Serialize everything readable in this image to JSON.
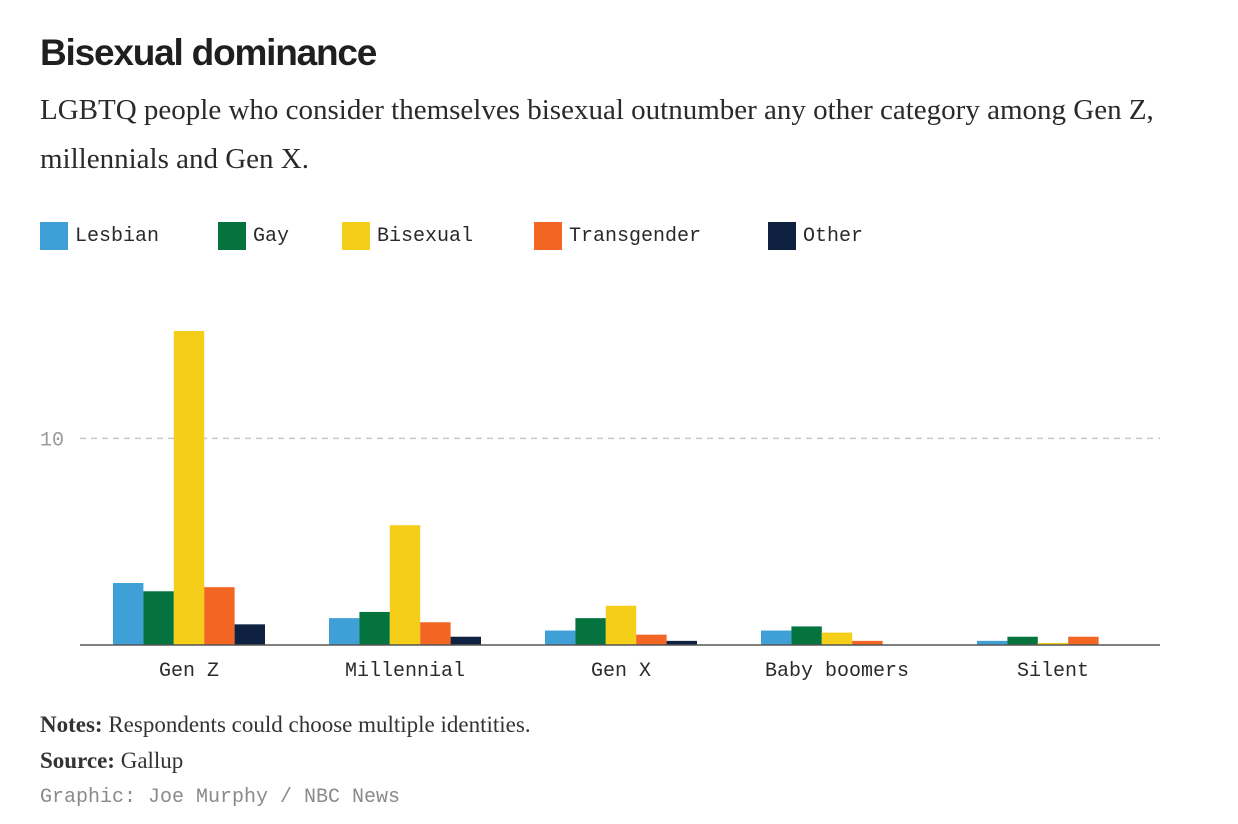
{
  "title": "Bisexual dominance",
  "subtitle": "LGBTQ people who consider themselves bisexual outnumber any other category among Gen Z, millennials and Gen X.",
  "notes": {
    "label": "Notes:",
    "text": "Respondents could choose multiple identities."
  },
  "source": {
    "label": "Source:",
    "text": "Gallup"
  },
  "credit": "Graphic: Joe Murphy / NBC News",
  "chart_data": {
    "type": "bar",
    "title": "Bisexual dominance",
    "xlabel": "",
    "ylabel": "",
    "ylim": [
      0,
      15.2
    ],
    "yticks": [
      10
    ],
    "grid": "dashed at y-ticks",
    "legend_placement": "top-left",
    "categories": [
      "Gen Z",
      "Millennial",
      "Gen X",
      "Baby boomers",
      "Silent"
    ],
    "series": [
      {
        "name": "Lesbian",
        "color": "#3ea0d6",
        "values": [
          3.0,
          1.3,
          0.7,
          0.7,
          0.2
        ]
      },
      {
        "name": "Gay",
        "color": "#05733d",
        "values": [
          2.6,
          1.6,
          1.3,
          0.9,
          0.4
        ]
      },
      {
        "name": "Bisexual",
        "color": "#f4ce18",
        "values": [
          15.2,
          5.8,
          1.9,
          0.6,
          0.1
        ]
      },
      {
        "name": "Transgender",
        "color": "#f26522",
        "values": [
          2.8,
          1.1,
          0.5,
          0.2,
          0.4
        ]
      },
      {
        "name": "Other",
        "color": "#0f2140",
        "values": [
          1.0,
          0.4,
          0.2,
          0.0,
          0.0
        ]
      }
    ]
  }
}
